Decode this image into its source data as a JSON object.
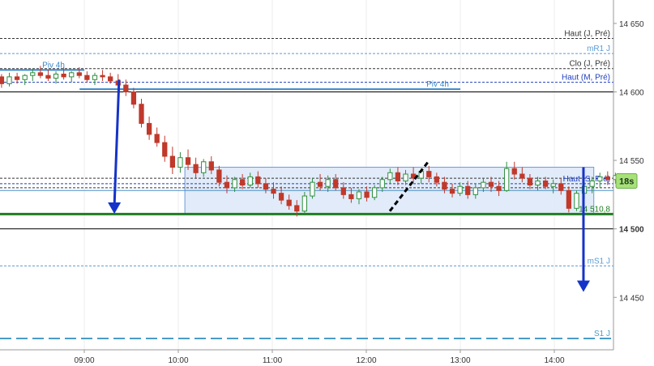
{
  "chart_data": {
    "type": "candlestick",
    "price_axis": {
      "ylim": [
        14420,
        14660
      ],
      "ticks": [
        {
          "value": 14650,
          "label": "14 650"
        },
        {
          "value": 14600,
          "label": "14 600"
        },
        {
          "value": 14550,
          "label": "14 550"
        },
        {
          "value": 14500,
          "label": "14 500",
          "bold": true
        },
        {
          "value": 14450,
          "label": "14 450"
        }
      ]
    },
    "time_axis": {
      "ticks": [
        {
          "hour": 9,
          "label": "09:00"
        },
        {
          "hour": 10,
          "label": "10:00"
        },
        {
          "hour": 11,
          "label": "11:00"
        },
        {
          "hour": 12,
          "label": "12:00"
        },
        {
          "hour": 13,
          "label": "13:00"
        },
        {
          "hour": 14,
          "label": "14:00"
        }
      ]
    },
    "levels": [
      {
        "price": 14639,
        "label": "Haut (J, Pré)",
        "color": "#333333",
        "style": "dashed"
      },
      {
        "price": 14628,
        "label": "mR1 J",
        "color": "#5b9bd5",
        "style": "dashed"
      },
      {
        "price": 14617,
        "label": "Clo (J, Pré)",
        "color": "#333333",
        "style": "dashed"
      },
      {
        "price": 14607,
        "label": "Haut (M, Pré)",
        "color": "#1f3fbf",
        "style": "dashed"
      },
      {
        "price": 14600,
        "label": "",
        "color": "#000000",
        "style": "solid"
      },
      {
        "price": 14537,
        "label": "",
        "color": "#333333",
        "style": "dashed"
      },
      {
        "price": 14533,
        "label": "Haut (S, Pré)",
        "color": "#1f3fbf",
        "style": "dashed"
      },
      {
        "price": 14530,
        "label": "",
        "color": "#333333",
        "style": "dashed"
      },
      {
        "price": 14528,
        "label": "",
        "color": "#4a90c8",
        "style": "solid"
      },
      {
        "price": 14510.8,
        "label": "14 510,8",
        "color": "#1e7d1e",
        "style": "thick"
      },
      {
        "price": 14500,
        "label": "",
        "color": "#000000",
        "style": "solid"
      },
      {
        "price": 14473,
        "label": "mS1 J",
        "color": "#5b9bd5",
        "style": "dashed"
      },
      {
        "price": 14420,
        "label": "S1 J",
        "color": "#4a9cc8",
        "style": "longdash"
      }
    ],
    "pivot_4h": [
      {
        "label": "Piv 4h",
        "price": 14616,
        "from_hour": 8.0,
        "to_hour": 9.0
      },
      {
        "label": "Piv 4h",
        "price": 14602,
        "from_hour": 8.95,
        "to_hour": 13.0
      }
    ],
    "range_box": {
      "from_hour": 10.07,
      "to_hour": 14.42,
      "price_low": 14510.8,
      "price_high": 14545
    },
    "arrows": [
      {
        "from_hour": 9.37,
        "from_price": 14609,
        "to_hour": 9.32,
        "to_price": 14511,
        "color": "#1533c8"
      },
      {
        "from_hour": 14.31,
        "from_price": 14545,
        "to_hour": 14.31,
        "to_price": 14454,
        "color": "#1533c8"
      }
    ],
    "projection": {
      "from_hour": 12.25,
      "from_price": 14513,
      "to_hour": 12.67,
      "to_price": 14550
    },
    "timer": "18s",
    "x_start_hour": 8.12,
    "x_end_hour": 14.65,
    "candles": [
      {
        "o": 14611,
        "h": 14613,
        "l": 14603,
        "c": 14606
      },
      {
        "o": 14606,
        "h": 14614,
        "l": 14604,
        "c": 14611
      },
      {
        "o": 14611,
        "h": 14614,
        "l": 14606,
        "c": 14609
      },
      {
        "o": 14609,
        "h": 14613,
        "l": 14605,
        "c": 14612
      },
      {
        "o": 14612,
        "h": 14617,
        "l": 14608,
        "c": 14614
      },
      {
        "o": 14614,
        "h": 14619,
        "l": 14610,
        "c": 14612
      },
      {
        "o": 14612,
        "h": 14616,
        "l": 14608,
        "c": 14610
      },
      {
        "o": 14610,
        "h": 14615,
        "l": 14606,
        "c": 14613
      },
      {
        "o": 14613,
        "h": 14618,
        "l": 14609,
        "c": 14611
      },
      {
        "o": 14611,
        "h": 14615,
        "l": 14607,
        "c": 14614
      },
      {
        "o": 14614,
        "h": 14618,
        "l": 14610,
        "c": 14612
      },
      {
        "o": 14612,
        "h": 14615,
        "l": 14607,
        "c": 14609
      },
      {
        "o": 14609,
        "h": 14614,
        "l": 14605,
        "c": 14612
      },
      {
        "o": 14612,
        "h": 14616,
        "l": 14608,
        "c": 14611
      },
      {
        "o": 14611,
        "h": 14614,
        "l": 14606,
        "c": 14608
      },
      {
        "o": 14608,
        "h": 14613,
        "l": 14603,
        "c": 14605
      },
      {
        "o": 14605,
        "h": 14609,
        "l": 14597,
        "c": 14600
      },
      {
        "o": 14600,
        "h": 14603,
        "l": 14588,
        "c": 14591
      },
      {
        "o": 14591,
        "h": 14595,
        "l": 14574,
        "c": 14577
      },
      {
        "o": 14577,
        "h": 14582,
        "l": 14565,
        "c": 14569
      },
      {
        "o": 14569,
        "h": 14574,
        "l": 14560,
        "c": 14563
      },
      {
        "o": 14563,
        "h": 14568,
        "l": 14549,
        "c": 14553
      },
      {
        "o": 14553,
        "h": 14560,
        "l": 14540,
        "c": 14545
      },
      {
        "o": 14545,
        "h": 14556,
        "l": 14541,
        "c": 14552
      },
      {
        "o": 14552,
        "h": 14558,
        "l": 14543,
        "c": 14547
      },
      {
        "o": 14547,
        "h": 14552,
        "l": 14537,
        "c": 14541
      },
      {
        "o": 14541,
        "h": 14551,
        "l": 14538,
        "c": 14549
      },
      {
        "o": 14549,
        "h": 14553,
        "l": 14540,
        "c": 14543
      },
      {
        "o": 14543,
        "h": 14546,
        "l": 14531,
        "c": 14534
      },
      {
        "o": 14534,
        "h": 14539,
        "l": 14526,
        "c": 14530
      },
      {
        "o": 14530,
        "h": 14538,
        "l": 14527,
        "c": 14536
      },
      {
        "o": 14536,
        "h": 14540,
        "l": 14529,
        "c": 14532
      },
      {
        "o": 14532,
        "h": 14541,
        "l": 14530,
        "c": 14538
      },
      {
        "o": 14538,
        "h": 14542,
        "l": 14530,
        "c": 14533
      },
      {
        "o": 14533,
        "h": 14537,
        "l": 14526,
        "c": 14529
      },
      {
        "o": 14529,
        "h": 14534,
        "l": 14522,
        "c": 14526
      },
      {
        "o": 14526,
        "h": 14531,
        "l": 14518,
        "c": 14521
      },
      {
        "o": 14521,
        "h": 14525,
        "l": 14514,
        "c": 14517
      },
      {
        "o": 14517,
        "h": 14521,
        "l": 14509,
        "c": 14513
      },
      {
        "o": 14513,
        "h": 14527,
        "l": 14511,
        "c": 14524
      },
      {
        "o": 14524,
        "h": 14537,
        "l": 14522,
        "c": 14534
      },
      {
        "o": 14534,
        "h": 14540,
        "l": 14528,
        "c": 14531
      },
      {
        "o": 14531,
        "h": 14539,
        "l": 14527,
        "c": 14536
      },
      {
        "o": 14536,
        "h": 14540,
        "l": 14528,
        "c": 14530
      },
      {
        "o": 14530,
        "h": 14534,
        "l": 14522,
        "c": 14525
      },
      {
        "o": 14525,
        "h": 14530,
        "l": 14519,
        "c": 14522
      },
      {
        "o": 14522,
        "h": 14529,
        "l": 14518,
        "c": 14527
      },
      {
        "o": 14527,
        "h": 14531,
        "l": 14520,
        "c": 14523
      },
      {
        "o": 14523,
        "h": 14532,
        "l": 14521,
        "c": 14530
      },
      {
        "o": 14530,
        "h": 14538,
        "l": 14527,
        "c": 14536
      },
      {
        "o": 14536,
        "h": 14544,
        "l": 14533,
        "c": 14541
      },
      {
        "o": 14541,
        "h": 14545,
        "l": 14532,
        "c": 14535
      },
      {
        "o": 14535,
        "h": 14543,
        "l": 14532,
        "c": 14540
      },
      {
        "o": 14540,
        "h": 14545,
        "l": 14534,
        "c": 14537
      },
      {
        "o": 14537,
        "h": 14544,
        "l": 14533,
        "c": 14542
      },
      {
        "o": 14542,
        "h": 14546,
        "l": 14534,
        "c": 14538
      },
      {
        "o": 14538,
        "h": 14541,
        "l": 14531,
        "c": 14534
      },
      {
        "o": 14534,
        "h": 14538,
        "l": 14526,
        "c": 14529
      },
      {
        "o": 14529,
        "h": 14533,
        "l": 14523,
        "c": 14526
      },
      {
        "o": 14526,
        "h": 14534,
        "l": 14524,
        "c": 14531
      },
      {
        "o": 14531,
        "h": 14535,
        "l": 14522,
        "c": 14525
      },
      {
        "o": 14525,
        "h": 14533,
        "l": 14522,
        "c": 14530
      },
      {
        "o": 14530,
        "h": 14537,
        "l": 14527,
        "c": 14534
      },
      {
        "o": 14534,
        "h": 14538,
        "l": 14527,
        "c": 14531
      },
      {
        "o": 14531,
        "h": 14535,
        "l": 14524,
        "c": 14528
      },
      {
        "o": 14528,
        "h": 14549,
        "l": 14527,
        "c": 14544
      },
      {
        "o": 14544,
        "h": 14549,
        "l": 14536,
        "c": 14540
      },
      {
        "o": 14540,
        "h": 14545,
        "l": 14534,
        "c": 14537
      },
      {
        "o": 14537,
        "h": 14540,
        "l": 14529,
        "c": 14532
      },
      {
        "o": 14532,
        "h": 14538,
        "l": 14528,
        "c": 14535
      },
      {
        "o": 14535,
        "h": 14538,
        "l": 14529,
        "c": 14531
      },
      {
        "o": 14531,
        "h": 14536,
        "l": 14526,
        "c": 14533
      },
      {
        "o": 14533,
        "h": 14537,
        "l": 14525,
        "c": 14528
      },
      {
        "o": 14528,
        "h": 14531,
        "l": 14512,
        "c": 14515
      },
      {
        "o": 14515,
        "h": 14528,
        "l": 14513,
        "c": 14526
      },
      {
        "o": 14526,
        "h": 14534,
        "l": 14522,
        "c": 14531
      },
      {
        "o": 14531,
        "h": 14538,
        "l": 14526,
        "c": 14535
      },
      {
        "o": 14535,
        "h": 14541,
        "l": 14530,
        "c": 14538
      },
      {
        "o": 14538,
        "h": 14542,
        "l": 14532,
        "c": 14536
      },
      {
        "o": 14536,
        "h": 14541,
        "l": 14533,
        "c": 14539
      }
    ]
  }
}
